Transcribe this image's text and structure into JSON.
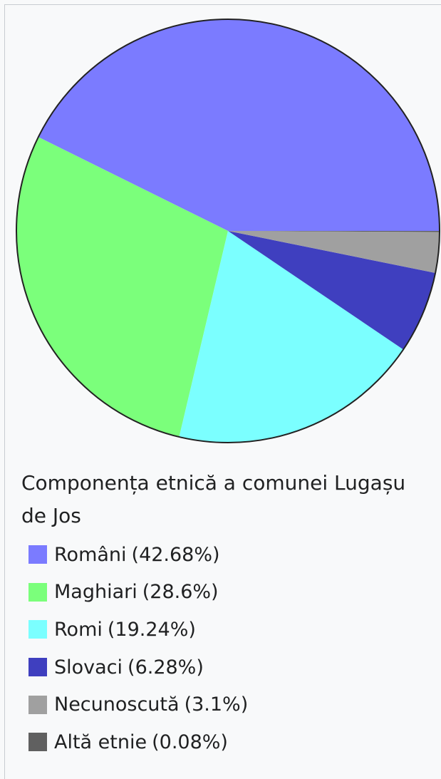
{
  "chart_data": {
    "type": "pie",
    "title": "Componența etnică a comunei Lugașu de Jos",
    "categories": [
      "Români",
      "Maghiari",
      "Romi",
      "Slovaci",
      "Necunoscută",
      "Altă etnie"
    ],
    "values": [
      42.68,
      28.6,
      19.24,
      6.28,
      3.1,
      0.08
    ],
    "value_labels": [
      "(42.68%)",
      "(28.6%)",
      "(19.24%)",
      "(6.28%)",
      "(3.1%)",
      "(0.08%)"
    ],
    "colors": [
      "#7b7bff",
      "#7bff7b",
      "#7bffff",
      "#3f3fbf",
      "#a0a0a0",
      "#606060"
    ]
  }
}
